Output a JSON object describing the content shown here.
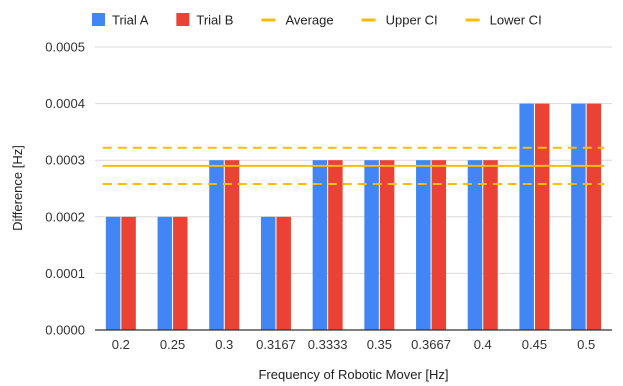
{
  "chart_data": {
    "type": "bar",
    "title": "",
    "xlabel": "Frequency of Robotic Mover [Hz]",
    "ylabel": "Difference [Hz]",
    "categories": [
      "0.2",
      "0.25",
      "0.3",
      "0.3167",
      "0.3333",
      "0.35",
      "0.3667",
      "0.4",
      "0.45",
      "0.5"
    ],
    "series": [
      {
        "name": "Trial A",
        "color": "#4285f4",
        "values": [
          0.0002,
          0.0002,
          0.0003,
          0.0002,
          0.0003,
          0.0003,
          0.0003,
          0.0003,
          0.0004,
          0.0004
        ]
      },
      {
        "name": "Trial B",
        "color": "#ea4335",
        "values": [
          0.0002,
          0.0002,
          0.0003,
          0.0002,
          0.0003,
          0.0003,
          0.0003,
          0.0003,
          0.0004,
          0.0004
        ]
      }
    ],
    "reference_lines": [
      {
        "name": "Average",
        "value": 0.00029,
        "style": "solid",
        "color": "#fbbc04"
      },
      {
        "name": "Upper CI",
        "value": 0.000322,
        "style": "dashed",
        "color": "#fbbc04"
      },
      {
        "name": "Lower CI",
        "value": 0.000258,
        "style": "dashed",
        "color": "#fbbc04"
      }
    ],
    "yticks": [
      "0.0000",
      "0.0001",
      "0.0002",
      "0.0003",
      "0.0004",
      "0.0005"
    ],
    "ylim": [
      0,
      0.0005
    ],
    "grid": true,
    "legend_position": "top-left"
  }
}
